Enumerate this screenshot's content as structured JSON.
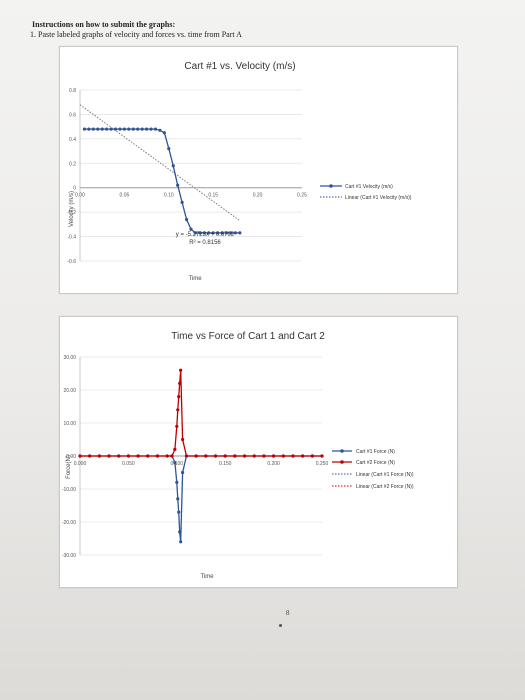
{
  "instructions": {
    "heading": "Instructions on how to submit the graphs:",
    "item_number": "1.",
    "item_text": "Paste labeled graphs of velocity and forces vs. time from Part A"
  },
  "page_number": "8",
  "chart_data": [
    {
      "type": "line",
      "title": "Cart #1 vs. Velocity (m/s)",
      "xlabel": "Time",
      "ylabel": "Velocity (m/s)",
      "xlim": [
        0,
        0.25
      ],
      "ylim": [
        -0.6,
        0.8
      ],
      "x_ticks": [
        "0.00",
        "0.05",
        "0.10",
        "0.15",
        "0.20",
        "0.25"
      ],
      "y_ticks": [
        "0.8",
        "0.6",
        "0.4",
        "0.2",
        "0",
        "-0.2",
        "-0.4",
        "-0.6"
      ],
      "y_tick_values": [
        0.8,
        0.6,
        0.4,
        0.2,
        0,
        -0.2,
        -0.4,
        -0.6
      ],
      "series": [
        {
          "name": "Cart #1 Velocity (m/s)",
          "color": "#2f5597",
          "x": [
            0.005,
            0.01,
            0.015,
            0.02,
            0.025,
            0.03,
            0.035,
            0.04,
            0.045,
            0.05,
            0.055,
            0.06,
            0.065,
            0.07,
            0.075,
            0.08,
            0.085,
            0.09,
            0.095,
            0.1,
            0.105,
            0.11,
            0.115,
            0.12,
            0.125,
            0.13,
            0.135,
            0.14,
            0.145,
            0.15,
            0.155,
            0.16,
            0.165,
            0.17,
            0.175,
            0.18
          ],
          "y": [
            0.48,
            0.48,
            0.48,
            0.48,
            0.48,
            0.48,
            0.48,
            0.48,
            0.48,
            0.48,
            0.48,
            0.48,
            0.48,
            0.48,
            0.48,
            0.48,
            0.48,
            0.47,
            0.45,
            0.32,
            0.18,
            0.02,
            -0.12,
            -0.26,
            -0.34,
            -0.37,
            -0.37,
            -0.37,
            -0.37,
            -0.37,
            -0.37,
            -0.37,
            -0.37,
            -0.37,
            -0.37,
            -0.37
          ]
        }
      ],
      "trendline": {
        "name": "Linear (Cart #1 Velocity (m/s))",
        "slope": -5.2723,
        "intercept": 0.6792,
        "x_range": [
          0,
          0.18
        ],
        "equation": "y = -5.2723x + 0.6792",
        "r_squared": "R² = 0.8156"
      }
    },
    {
      "type": "line",
      "title": "Time vs Force of Cart 1 and Cart 2",
      "xlabel": "Time",
      "ylabel": "Force(N)",
      "xlim": [
        0,
        0.25
      ],
      "ylim": [
        -30,
        30
      ],
      "x_ticks": [
        "0.000",
        "0.050",
        "0.100",
        "0.150",
        "0.200",
        "0.250"
      ],
      "y_ticks": [
        "30.00",
        "20.00",
        "10.00",
        "0.00",
        "-10.00",
        "-20.00",
        "-30.00"
      ],
      "y_tick_values": [
        30,
        20,
        10,
        0,
        -10,
        -20,
        -30
      ],
      "series": [
        {
          "name": "Cart #1 Force (N)",
          "color": "#2f5597",
          "x": [
            0,
            0.01,
            0.02,
            0.03,
            0.04,
            0.05,
            0.06,
            0.07,
            0.08,
            0.09,
            0.095,
            0.098,
            0.1,
            0.101,
            0.102,
            0.103,
            0.104,
            0.106,
            0.11,
            0.12,
            0.13,
            0.14,
            0.15,
            0.16,
            0.17,
            0.18,
            0.19,
            0.2,
            0.21,
            0.22,
            0.23,
            0.24,
            0.25
          ],
          "y": [
            0,
            0,
            0,
            0,
            0,
            0,
            0,
            0,
            0,
            0,
            0,
            -2,
            -8,
            -13,
            -17,
            -23,
            -26,
            -5,
            0,
            0,
            0,
            0,
            0,
            0,
            0,
            0,
            0,
            0,
            0,
            0,
            0,
            0,
            0
          ]
        },
        {
          "name": "Cart #2 Force (N)",
          "color": "#c00000",
          "x": [
            0,
            0.01,
            0.02,
            0.03,
            0.04,
            0.05,
            0.06,
            0.07,
            0.08,
            0.09,
            0.095,
            0.098,
            0.1,
            0.101,
            0.102,
            0.103,
            0.104,
            0.106,
            0.11,
            0.12,
            0.13,
            0.14,
            0.15,
            0.16,
            0.17,
            0.18,
            0.19,
            0.2,
            0.21,
            0.22,
            0.23,
            0.24,
            0.25
          ],
          "y": [
            0,
            0,
            0,
            0,
            0,
            0,
            0,
            0,
            0,
            0,
            0,
            2,
            9,
            14,
            18,
            22,
            26,
            5,
            0,
            0,
            0,
            0,
            0,
            0,
            0,
            0,
            0,
            0,
            0,
            0,
            0,
            0,
            0
          ]
        }
      ],
      "trendlines": [
        {
          "name": "Linear (Cart #1 Force (N))",
          "color": "#2f5597"
        },
        {
          "name": "Linear (Cart #2 Force (N))",
          "color": "#c00000"
        }
      ]
    }
  ]
}
